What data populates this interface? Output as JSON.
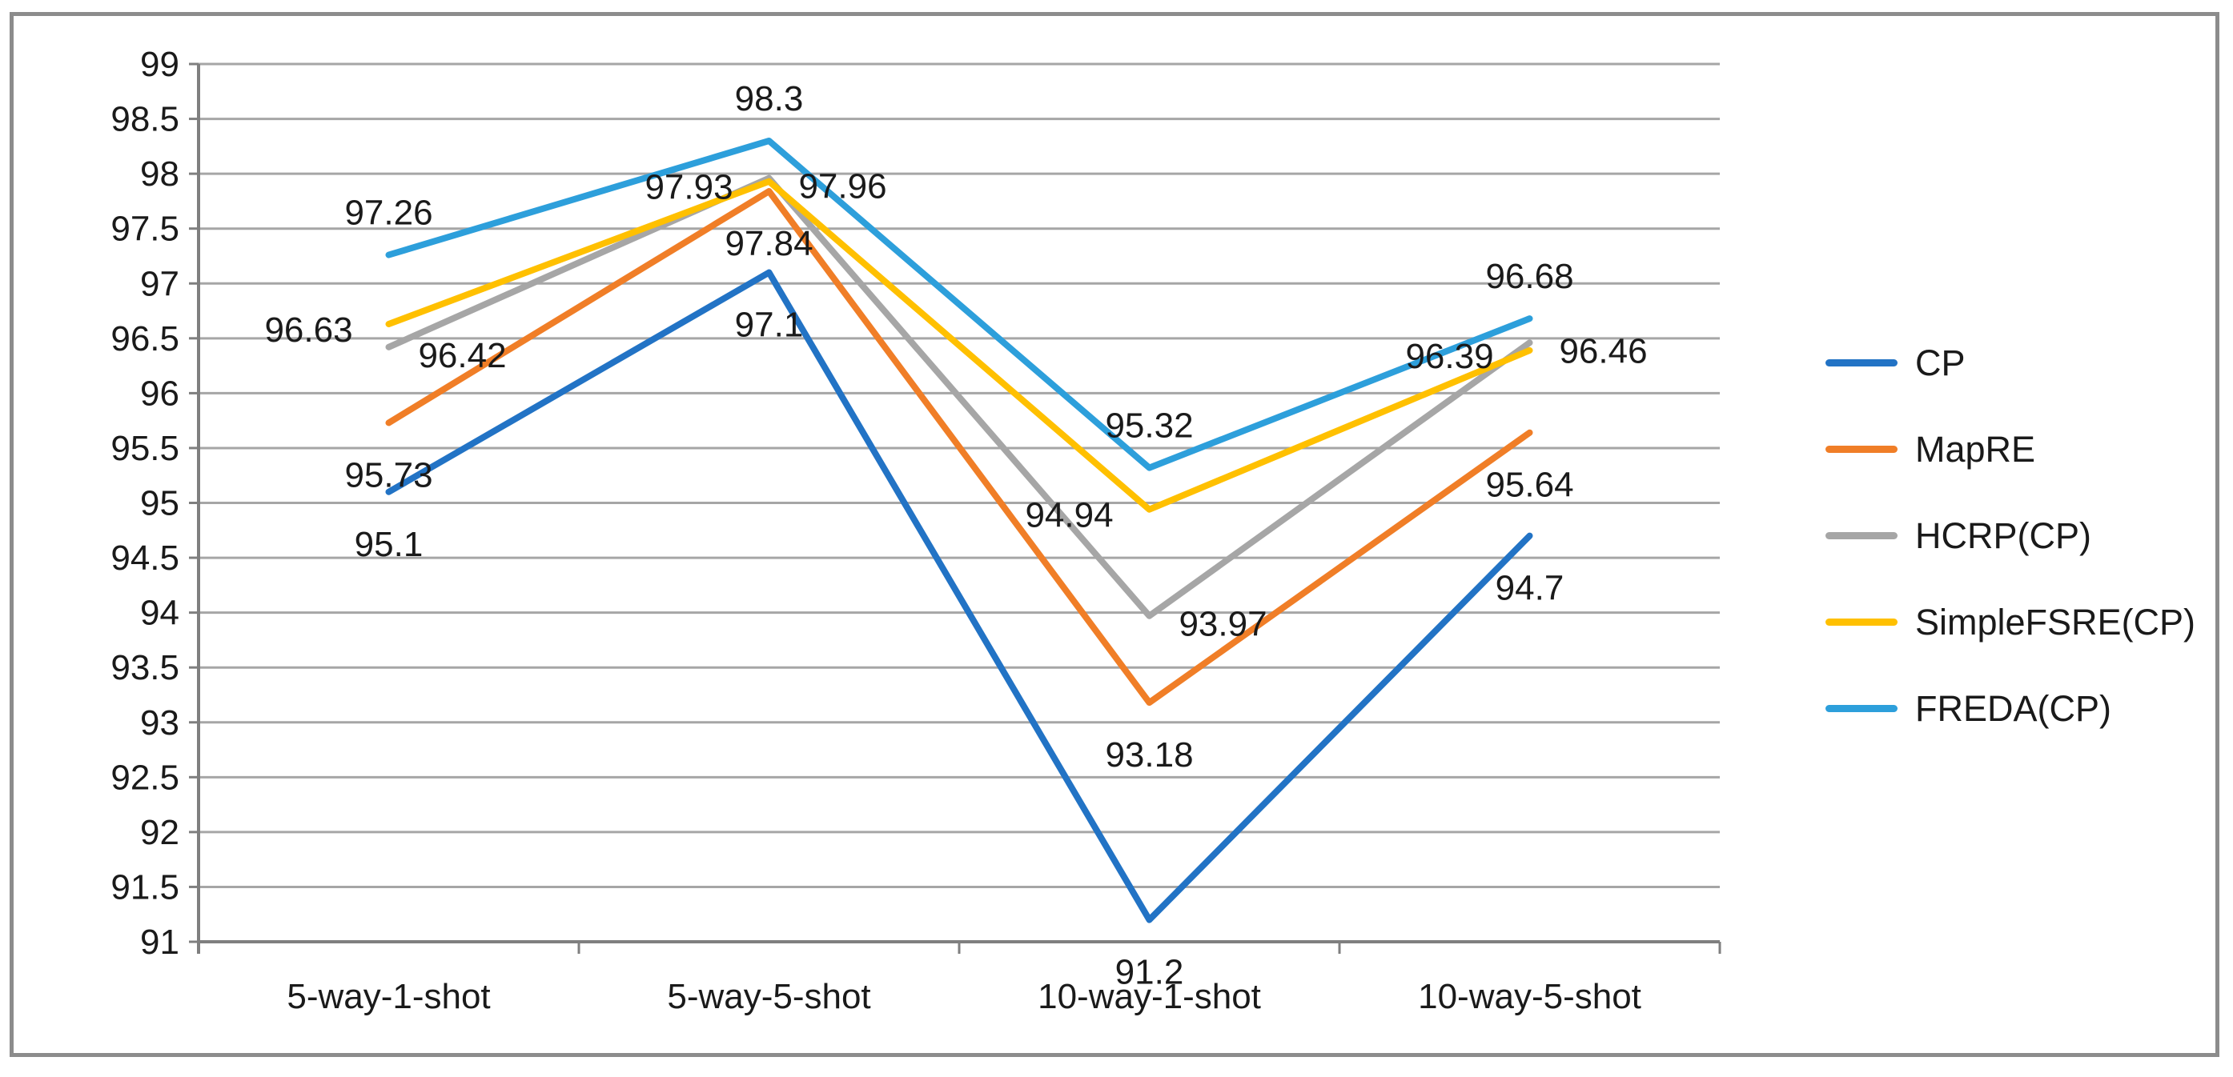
{
  "figure": {
    "background": "#FFFFFF",
    "border_color": "#8C8C8C",
    "grid_color": "#A6A6A6",
    "axis_color": "#7F7F7F",
    "text_color": "#1A1A1A"
  },
  "chart_data": {
    "type": "line",
    "title": "",
    "xlabel": "",
    "ylabel": "",
    "categories": [
      "5-way-1-shot",
      "5-way-5-shot",
      "10-way-1-shot",
      "10-way-5-shot"
    ],
    "ylim": [
      91,
      99
    ],
    "ytick_step": 0.5,
    "grid": true,
    "legend_position": "right",
    "series": [
      {
        "name": "CP",
        "color": "#2273C5",
        "values": [
          95.1,
          97.1,
          91.2,
          94.7
        ],
        "labels": [
          "95.1",
          "97.1",
          "91.2",
          "94.7"
        ],
        "label_pos": [
          "below",
          "below",
          "below",
          "below"
        ]
      },
      {
        "name": "MapRE",
        "color": "#F07E27",
        "values": [
          95.73,
          97.84,
          93.18,
          95.64
        ],
        "labels": [
          "95.73",
          "97.84",
          "93.18",
          "95.64"
        ],
        "label_pos": [
          "below",
          "below",
          "below",
          "below"
        ]
      },
      {
        "name": "HCRP(CP)",
        "color": "#A6A6A6",
        "values": [
          96.42,
          97.96,
          93.97,
          96.46
        ],
        "labels": [
          "96.42",
          "97.96",
          "93.97",
          "96.46"
        ],
        "label_pos": [
          "right",
          "right",
          "right",
          "right"
        ]
      },
      {
        "name": "SimpleFSRE(CP)",
        "color": "#FFC000",
        "values": [
          96.63,
          97.93,
          94.94,
          96.39
        ],
        "labels": [
          "96.63",
          "97.93",
          "94.94",
          "96.39"
        ],
        "label_pos": [
          "left",
          "left",
          "left",
          "left"
        ]
      },
      {
        "name": "FREDA(CP)",
        "color": "#2D9FDB",
        "values": [
          97.26,
          98.3,
          95.32,
          96.68
        ],
        "labels": [
          "97.26",
          "98.3",
          "95.32",
          "96.68"
        ],
        "label_pos": [
          "above",
          "above",
          "above",
          "above"
        ]
      }
    ]
  }
}
